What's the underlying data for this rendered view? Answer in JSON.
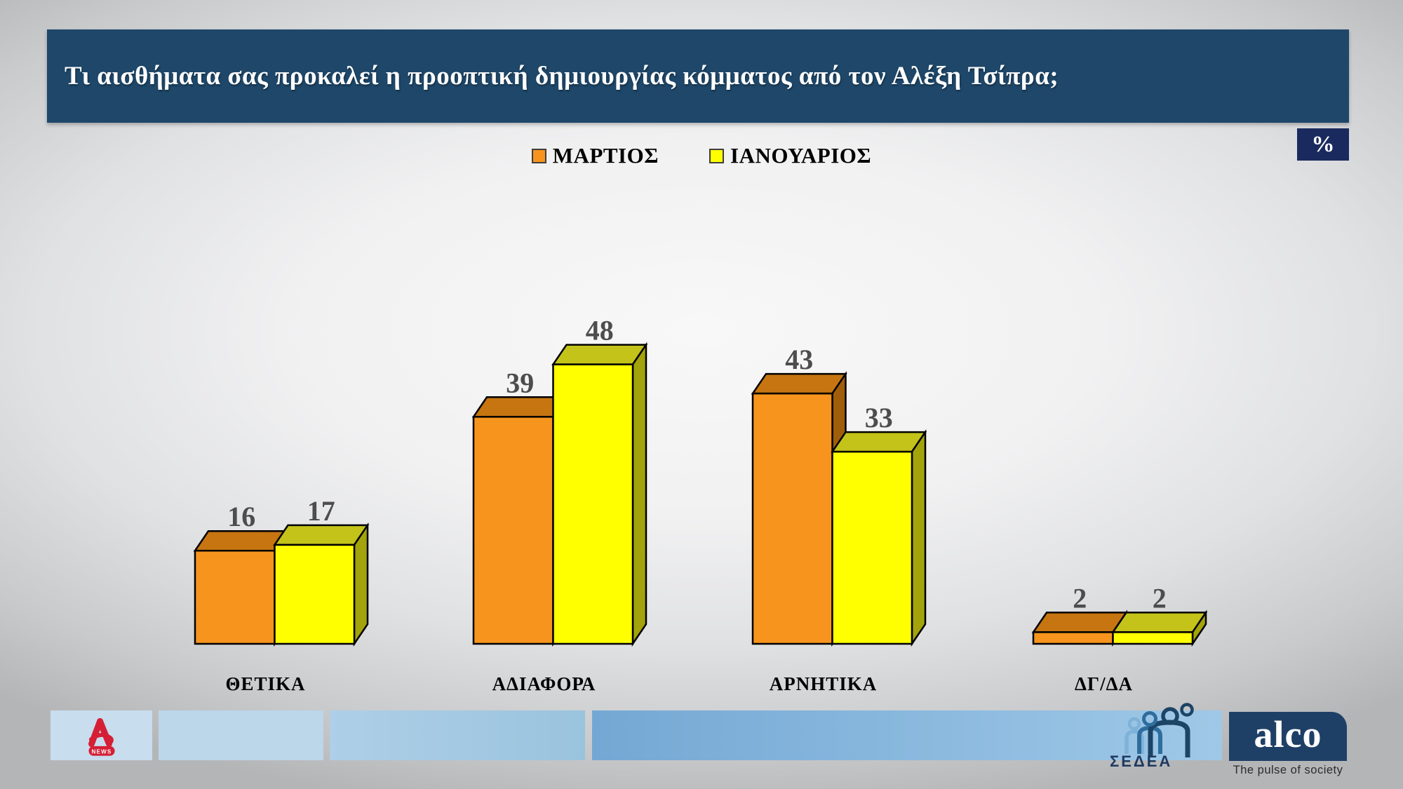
{
  "header": {
    "title": "Τι αισθήματα σας προκαλεί η προοπτική δημιουργίας κόμματος από τον Αλέξη Τσίπρα;",
    "unit_badge": "%",
    "bar_color": "#1E4769",
    "badge_color": "#1A2A5E"
  },
  "legend": {
    "items": [
      {
        "label": "ΜΑΡΤΙΟΣ",
        "color": "#F7941D"
      },
      {
        "label": "ΙΑΝΟΥΑΡΙΟΣ",
        "color": "#FFFF00"
      }
    ]
  },
  "chart_data": {
    "type": "bar",
    "style": "3d-clustered",
    "title": "Τι αισθήματα σας προκαλεί η προοπτική δημιουργίας κόμματος από τον Αλέξη Τσίπρα;",
    "unit": "%",
    "categories": [
      "ΘΕΤΙΚΑ",
      "ΑΔΙΑΦΟΡΑ",
      "ΑΡΝΗΤΙΚΑ",
      "ΔΓ/ΔΑ"
    ],
    "series": [
      {
        "name": "ΜΑΡΤΙΟΣ",
        "values": [
          16,
          39,
          43,
          2
        ],
        "front": "#F7941D",
        "top": "#C67511",
        "side": "#A05E0A"
      },
      {
        "name": "ΙΑΝΟΥΑΡΙΟΣ",
        "values": [
          17,
          48,
          33,
          2
        ],
        "front": "#FFFF00",
        "top": "#C3C31A",
        "side": "#A3A30B"
      }
    ],
    "value_labels": true,
    "ylim": [
      0,
      55
    ],
    "axes_visible": false,
    "gridlines": false,
    "legend_position": "top"
  },
  "footer": {
    "alpha_news_label": "NEWS",
    "sedea_label": "ΣΕΔΕΑ",
    "alco_name": "alco",
    "alco_tagline": "The pulse of society"
  },
  "colors": {
    "value_label": "#4D4D4D",
    "category_label": "#000000",
    "bar_outline": "#000000",
    "alpha_red": "#D51F35",
    "alco_navy": "#1F4066",
    "sedea_navy": "#1F3A60",
    "sedea_light": "#7FB2D9",
    "sedea_mid": "#2E6E9E",
    "sedea_dark": "#1C4466"
  }
}
